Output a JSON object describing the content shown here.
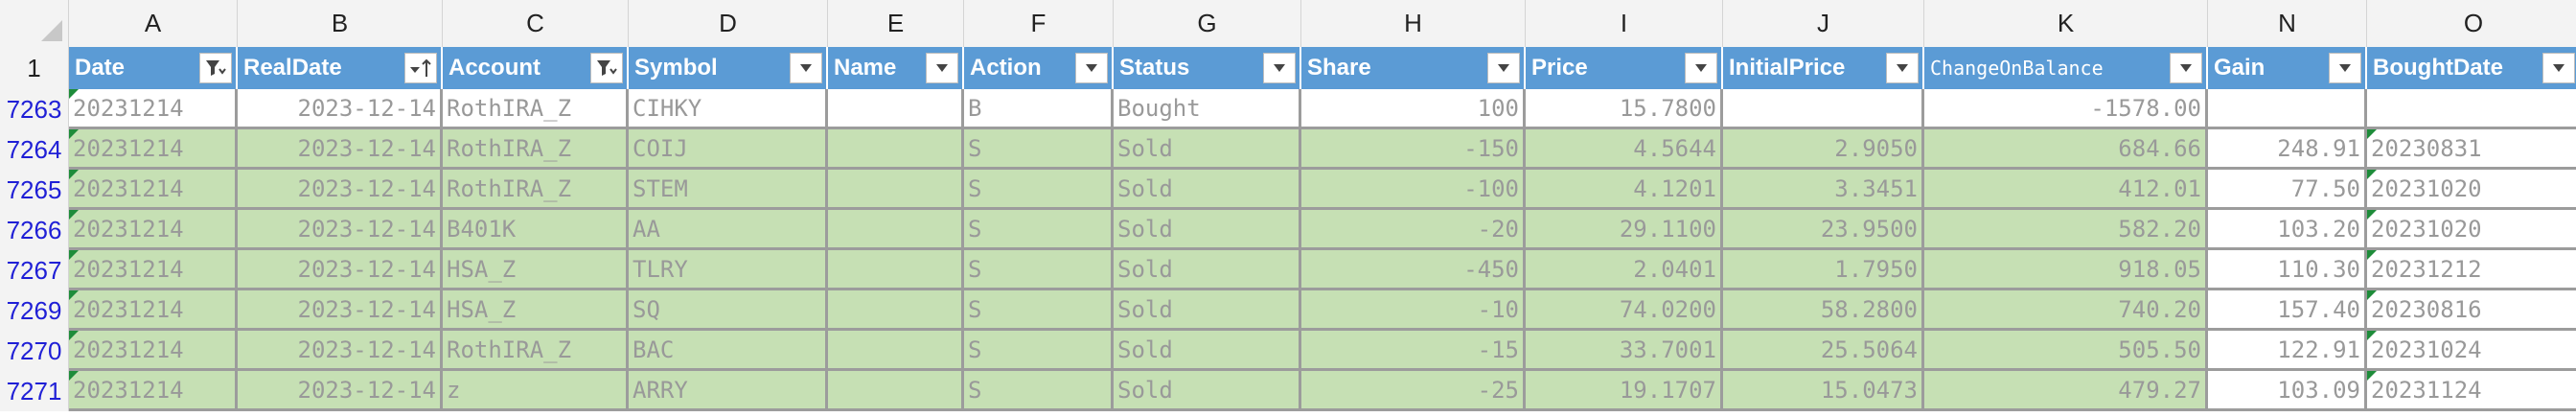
{
  "columns": [
    "A",
    "B",
    "C",
    "D",
    "E",
    "F",
    "G",
    "H",
    "I",
    "J",
    "K",
    "N",
    "O"
  ],
  "header_row_number": "1",
  "headers": [
    {
      "label": "Date",
      "filter": "funnel"
    },
    {
      "label": "RealDate",
      "filter": "sort-asc"
    },
    {
      "label": "Account",
      "filter": "funnel"
    },
    {
      "label": "Symbol",
      "filter": "dropdown"
    },
    {
      "label": "Name",
      "filter": "dropdown"
    },
    {
      "label": "Action",
      "filter": "dropdown"
    },
    {
      "label": "Status",
      "filter": "dropdown"
    },
    {
      "label": "Share",
      "filter": "dropdown"
    },
    {
      "label": "Price",
      "filter": "dropdown"
    },
    {
      "label": "InitialPrice",
      "filter": "dropdown"
    },
    {
      "label": "ChangeOnBalance",
      "filter": "dropdown"
    },
    {
      "label": "Gain",
      "filter": "dropdown"
    },
    {
      "label": "BoughtDate",
      "filter": "dropdown"
    }
  ],
  "rows": [
    {
      "num": "7263",
      "cells": [
        "20231214",
        "2023-12-14",
        "RothIRA_Z",
        "CIHKY",
        "",
        "B",
        "Bought",
        "100",
        "15.7800",
        "",
        "-1578.00",
        "",
        ""
      ]
    },
    {
      "num": "7264",
      "cells": [
        "20231214",
        "2023-12-14",
        "RothIRA_Z",
        "COIJ",
        "",
        "S",
        "Sold",
        "-150",
        "4.5644",
        "2.9050",
        "684.66",
        "248.91",
        "20230831"
      ]
    },
    {
      "num": "7265",
      "cells": [
        "20231214",
        "2023-12-14",
        "RothIRA_Z",
        "STEM",
        "",
        "S",
        "Sold",
        "-100",
        "4.1201",
        "3.3451",
        "412.01",
        "77.50",
        "20231020"
      ]
    },
    {
      "num": "7266",
      "cells": [
        "20231214",
        "2023-12-14",
        "B401K",
        "AA",
        "",
        "S",
        "Sold",
        "-20",
        "29.1100",
        "23.9500",
        "582.20",
        "103.20",
        "20231020"
      ]
    },
    {
      "num": "7267",
      "cells": [
        "20231214",
        "2023-12-14",
        "HSA_Z",
        "TLRY",
        "",
        "S",
        "Sold",
        "-450",
        "2.0401",
        "1.7950",
        "918.05",
        "110.30",
        "20231212"
      ]
    },
    {
      "num": "7269",
      "cells": [
        "20231214",
        "2023-12-14",
        "HSA_Z",
        "SQ",
        "",
        "S",
        "Sold",
        "-10",
        "74.0200",
        "58.2800",
        "740.20",
        "157.40",
        "20230816"
      ]
    },
    {
      "num": "7270",
      "cells": [
        "20231214",
        "2023-12-14",
        "RothIRA_Z",
        "BAC",
        "",
        "S",
        "Sold",
        "-15",
        "33.7001",
        "25.5064",
        "505.50",
        "122.91",
        "20231024"
      ]
    },
    {
      "num": "7271",
      "cells": [
        "20231214",
        "2023-12-14",
        "z",
        "ARRY",
        "",
        "S",
        "Sold",
        "-25",
        "19.1707",
        "15.0473",
        "479.27",
        "103.09",
        "20231124"
      ]
    }
  ]
}
